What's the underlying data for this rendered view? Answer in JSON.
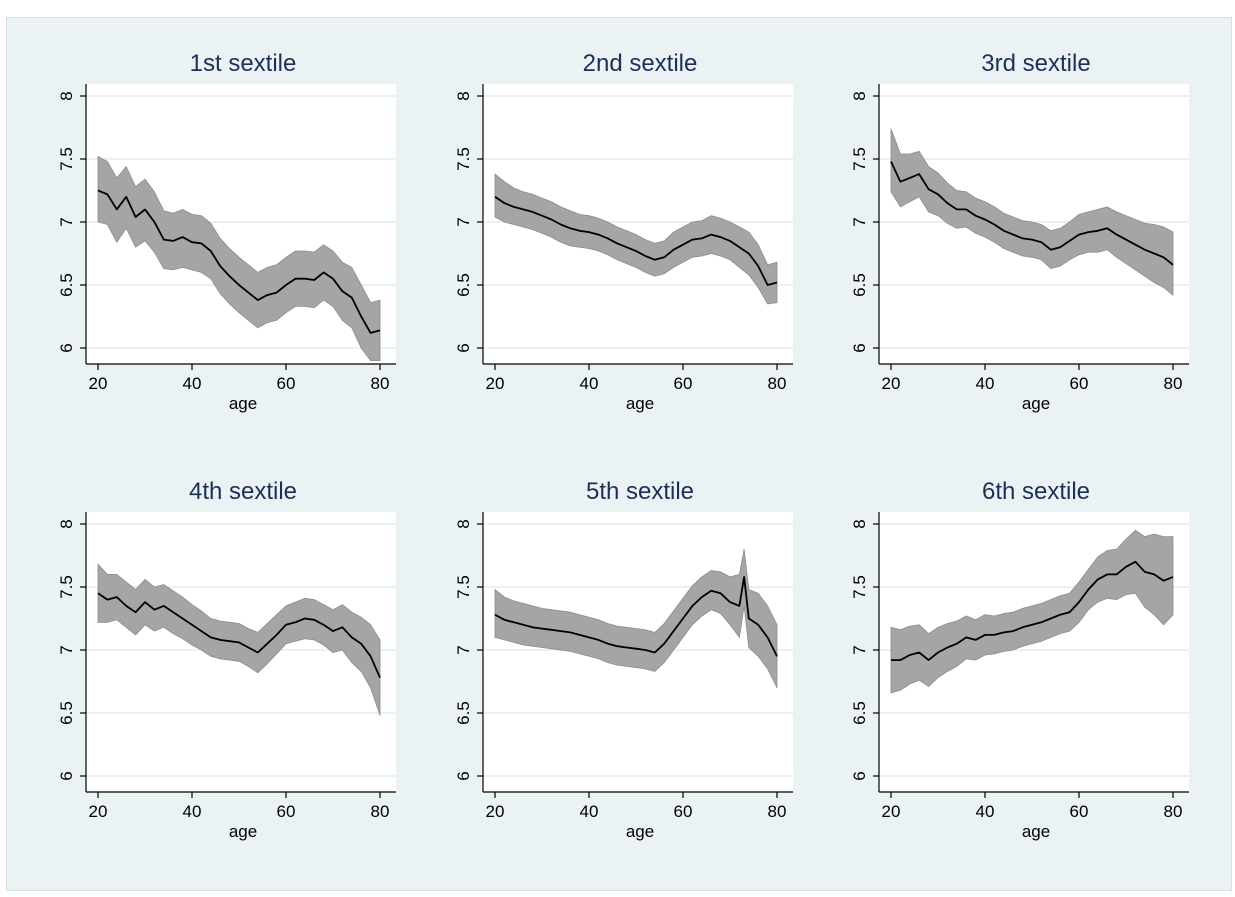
{
  "chart_data": [
    {
      "type": "line",
      "title": "1st sextile",
      "xlabel": "age",
      "ylabel": "",
      "xlim": [
        20,
        80
      ],
      "ylim": [
        6,
        8
      ],
      "xticks": [
        20,
        40,
        60,
        80
      ],
      "yticks": [
        6,
        6.5,
        7,
        7.5,
        8
      ],
      "grid": true,
      "legend": "none",
      "series": [
        {
          "x": [
            20,
            22,
            24,
            26,
            28,
            30,
            32,
            34,
            36,
            38,
            40,
            42,
            44,
            46,
            48,
            50,
            52,
            54,
            56,
            58,
            60,
            62,
            64,
            66,
            68,
            70,
            72,
            74,
            76,
            78,
            80
          ],
          "y": [
            7.25,
            7.22,
            7.1,
            7.2,
            7.04,
            7.1,
            7.0,
            6.86,
            6.85,
            6.88,
            6.84,
            6.83,
            6.77,
            6.65,
            6.57,
            6.5,
            6.44,
            6.38,
            6.42,
            6.44,
            6.5,
            6.55,
            6.55,
            6.54,
            6.6,
            6.55,
            6.45,
            6.4,
            6.25,
            6.12,
            6.14
          ],
          "lower": [
            7.0,
            6.98,
            6.84,
            6.95,
            6.8,
            6.85,
            6.76,
            6.63,
            6.62,
            6.64,
            6.62,
            6.6,
            6.55,
            6.43,
            6.35,
            6.28,
            6.22,
            6.16,
            6.2,
            6.22,
            6.28,
            6.33,
            6.33,
            6.32,
            6.38,
            6.33,
            6.22,
            6.16,
            6.0,
            5.9,
            5.9
          ],
          "upper": [
            7.52,
            7.48,
            7.35,
            7.44,
            7.28,
            7.34,
            7.24,
            7.09,
            7.07,
            7.1,
            7.06,
            7.05,
            6.99,
            6.87,
            6.79,
            6.72,
            6.66,
            6.6,
            6.64,
            6.66,
            6.72,
            6.77,
            6.77,
            6.76,
            6.82,
            6.77,
            6.68,
            6.64,
            6.5,
            6.36,
            6.38
          ]
        }
      ]
    },
    {
      "type": "line",
      "title": "2nd sextile",
      "xlabel": "age",
      "ylabel": "",
      "xlim": [
        20,
        80
      ],
      "ylim": [
        6,
        8
      ],
      "xticks": [
        20,
        40,
        60,
        80
      ],
      "yticks": [
        6,
        6.5,
        7,
        7.5,
        8
      ],
      "grid": true,
      "legend": "none",
      "series": [
        {
          "x": [
            20,
            22,
            24,
            26,
            28,
            30,
            32,
            34,
            36,
            38,
            40,
            42,
            44,
            46,
            48,
            50,
            52,
            54,
            56,
            58,
            60,
            62,
            64,
            66,
            68,
            70,
            72,
            74,
            76,
            78,
            80
          ],
          "y": [
            7.2,
            7.15,
            7.12,
            7.1,
            7.08,
            7.05,
            7.02,
            6.98,
            6.95,
            6.93,
            6.92,
            6.9,
            6.87,
            6.83,
            6.8,
            6.77,
            6.73,
            6.7,
            6.72,
            6.78,
            6.82,
            6.86,
            6.87,
            6.9,
            6.88,
            6.85,
            6.8,
            6.75,
            6.65,
            6.5,
            6.52
          ],
          "lower": [
            7.04,
            7.0,
            6.98,
            6.96,
            6.94,
            6.91,
            6.88,
            6.84,
            6.81,
            6.8,
            6.79,
            6.77,
            6.74,
            6.7,
            6.67,
            6.64,
            6.6,
            6.57,
            6.59,
            6.64,
            6.68,
            6.72,
            6.73,
            6.75,
            6.73,
            6.7,
            6.64,
            6.58,
            6.48,
            6.35,
            6.36
          ],
          "upper": [
            7.38,
            7.32,
            7.27,
            7.24,
            7.22,
            7.19,
            7.16,
            7.12,
            7.09,
            7.06,
            7.05,
            7.03,
            7.0,
            6.96,
            6.93,
            6.9,
            6.86,
            6.83,
            6.85,
            6.92,
            6.96,
            7.0,
            7.01,
            7.05,
            7.03,
            7.0,
            6.96,
            6.92,
            6.82,
            6.66,
            6.68
          ]
        }
      ]
    },
    {
      "type": "line",
      "title": "3rd sextile",
      "xlabel": "age",
      "ylabel": "",
      "xlim": [
        20,
        80
      ],
      "ylim": [
        6,
        8
      ],
      "xticks": [
        20,
        40,
        60,
        80
      ],
      "yticks": [
        6,
        6.5,
        7,
        7.5,
        8
      ],
      "grid": true,
      "legend": "none",
      "series": [
        {
          "x": [
            20,
            22,
            24,
            26,
            28,
            30,
            32,
            34,
            36,
            38,
            40,
            42,
            44,
            46,
            48,
            50,
            52,
            54,
            56,
            58,
            60,
            62,
            64,
            66,
            68,
            70,
            72,
            74,
            76,
            78,
            80
          ],
          "y": [
            7.48,
            7.32,
            7.35,
            7.38,
            7.26,
            7.22,
            7.15,
            7.1,
            7.1,
            7.05,
            7.02,
            6.98,
            6.93,
            6.9,
            6.87,
            6.86,
            6.84,
            6.78,
            6.8,
            6.85,
            6.9,
            6.92,
            6.93,
            6.95,
            6.9,
            6.86,
            6.82,
            6.78,
            6.75,
            6.72,
            6.66
          ],
          "lower": [
            7.24,
            7.12,
            7.16,
            7.2,
            7.08,
            7.05,
            6.99,
            6.95,
            6.96,
            6.91,
            6.88,
            6.84,
            6.79,
            6.76,
            6.73,
            6.72,
            6.7,
            6.63,
            6.65,
            6.7,
            6.74,
            6.76,
            6.76,
            6.78,
            6.72,
            6.67,
            6.62,
            6.57,
            6.52,
            6.48,
            6.42
          ],
          "upper": [
            7.74,
            7.54,
            7.54,
            7.56,
            7.44,
            7.39,
            7.31,
            7.25,
            7.24,
            7.19,
            7.16,
            7.12,
            7.07,
            7.04,
            7.01,
            7.0,
            6.98,
            6.93,
            6.95,
            7.0,
            7.06,
            7.08,
            7.1,
            7.12,
            7.08,
            7.05,
            7.02,
            6.99,
            6.98,
            6.96,
            6.92
          ]
        }
      ]
    },
    {
      "type": "line",
      "title": "4th sextile",
      "xlabel": "age",
      "ylabel": "",
      "xlim": [
        20,
        80
      ],
      "ylim": [
        6,
        8
      ],
      "xticks": [
        20,
        40,
        60,
        80
      ],
      "yticks": [
        6,
        6.5,
        7,
        7.5,
        8
      ],
      "grid": true,
      "legend": "none",
      "series": [
        {
          "x": [
            20,
            22,
            24,
            26,
            28,
            30,
            32,
            34,
            36,
            38,
            40,
            42,
            44,
            46,
            48,
            50,
            52,
            54,
            56,
            58,
            60,
            62,
            64,
            66,
            68,
            70,
            72,
            74,
            76,
            78,
            80
          ],
          "y": [
            7.45,
            7.4,
            7.42,
            7.35,
            7.3,
            7.38,
            7.32,
            7.35,
            7.3,
            7.25,
            7.2,
            7.15,
            7.1,
            7.08,
            7.07,
            7.06,
            7.02,
            6.98,
            7.05,
            7.12,
            7.2,
            7.22,
            7.25,
            7.24,
            7.2,
            7.15,
            7.18,
            7.1,
            7.05,
            6.95,
            6.78
          ],
          "lower": [
            7.22,
            7.22,
            7.24,
            7.18,
            7.12,
            7.2,
            7.15,
            7.18,
            7.13,
            7.09,
            7.04,
            7.0,
            6.95,
            6.93,
            6.92,
            6.91,
            6.87,
            6.82,
            6.89,
            6.97,
            7.05,
            7.07,
            7.09,
            7.08,
            7.04,
            6.98,
            7.0,
            6.9,
            6.83,
            6.7,
            6.48
          ],
          "upper": [
            7.68,
            7.6,
            7.6,
            7.54,
            7.48,
            7.56,
            7.5,
            7.52,
            7.47,
            7.42,
            7.36,
            7.31,
            7.25,
            7.23,
            7.22,
            7.21,
            7.17,
            7.14,
            7.21,
            7.28,
            7.35,
            7.38,
            7.41,
            7.4,
            7.36,
            7.32,
            7.36,
            7.3,
            7.26,
            7.2,
            7.08
          ]
        }
      ]
    },
    {
      "type": "line",
      "title": "5th sextile",
      "xlabel": "age",
      "ylabel": "",
      "xlim": [
        20,
        80
      ],
      "ylim": [
        6,
        8
      ],
      "xticks": [
        20,
        40,
        60,
        80
      ],
      "yticks": [
        6,
        6.5,
        7,
        7.5,
        8
      ],
      "grid": true,
      "legend": "none",
      "series": [
        {
          "x": [
            20,
            22,
            24,
            26,
            28,
            30,
            32,
            34,
            36,
            38,
            40,
            42,
            44,
            46,
            48,
            50,
            52,
            54,
            56,
            58,
            60,
            62,
            64,
            66,
            68,
            70,
            72,
            73,
            74,
            76,
            78,
            80
          ],
          "y": [
            7.28,
            7.24,
            7.22,
            7.2,
            7.18,
            7.17,
            7.16,
            7.15,
            7.14,
            7.12,
            7.1,
            7.08,
            7.05,
            7.03,
            7.02,
            7.01,
            7.0,
            6.98,
            7.05,
            7.15,
            7.25,
            7.35,
            7.42,
            7.47,
            7.45,
            7.38,
            7.35,
            7.58,
            7.25,
            7.2,
            7.1,
            6.95
          ],
          "lower": [
            7.1,
            7.08,
            7.06,
            7.04,
            7.03,
            7.02,
            7.01,
            7.0,
            6.99,
            6.97,
            6.95,
            6.93,
            6.9,
            6.88,
            6.87,
            6.86,
            6.85,
            6.83,
            6.9,
            7.0,
            7.1,
            7.2,
            7.27,
            7.32,
            7.29,
            7.2,
            7.1,
            7.35,
            7.02,
            6.95,
            6.85,
            6.7
          ],
          "upper": [
            7.48,
            7.42,
            7.39,
            7.37,
            7.35,
            7.33,
            7.32,
            7.31,
            7.3,
            7.28,
            7.26,
            7.24,
            7.21,
            7.19,
            7.18,
            7.17,
            7.16,
            7.14,
            7.21,
            7.31,
            7.41,
            7.51,
            7.58,
            7.63,
            7.62,
            7.58,
            7.6,
            7.8,
            7.48,
            7.45,
            7.35,
            7.2
          ]
        }
      ]
    },
    {
      "type": "line",
      "title": "6th sextile",
      "xlabel": "age",
      "ylabel": "",
      "xlim": [
        20,
        80
      ],
      "ylim": [
        6,
        8
      ],
      "xticks": [
        20,
        40,
        60,
        80
      ],
      "yticks": [
        6,
        6.5,
        7,
        7.5,
        8
      ],
      "grid": true,
      "legend": "none",
      "series": [
        {
          "x": [
            20,
            22,
            24,
            26,
            28,
            30,
            32,
            34,
            36,
            38,
            40,
            42,
            44,
            46,
            48,
            50,
            52,
            54,
            56,
            58,
            60,
            62,
            64,
            66,
            68,
            70,
            72,
            74,
            76,
            78,
            80
          ],
          "y": [
            6.92,
            6.92,
            6.96,
            6.98,
            6.92,
            6.98,
            7.02,
            7.05,
            7.1,
            7.08,
            7.12,
            7.12,
            7.14,
            7.15,
            7.18,
            7.2,
            7.22,
            7.25,
            7.28,
            7.3,
            7.38,
            7.48,
            7.56,
            7.6,
            7.6,
            7.66,
            7.7,
            7.62,
            7.6,
            7.55,
            7.58
          ],
          "lower": [
            6.66,
            6.68,
            6.73,
            6.76,
            6.71,
            6.78,
            6.83,
            6.87,
            6.93,
            6.92,
            6.96,
            6.97,
            6.99,
            7.0,
            7.03,
            7.05,
            7.07,
            7.1,
            7.13,
            7.15,
            7.22,
            7.32,
            7.38,
            7.41,
            7.4,
            7.44,
            7.45,
            7.34,
            7.28,
            7.2,
            7.28
          ],
          "upper": [
            7.18,
            7.16,
            7.19,
            7.2,
            7.13,
            7.18,
            7.21,
            7.23,
            7.27,
            7.24,
            7.28,
            7.27,
            7.29,
            7.3,
            7.33,
            7.35,
            7.37,
            7.4,
            7.43,
            7.45,
            7.54,
            7.64,
            7.74,
            7.79,
            7.8,
            7.88,
            7.95,
            7.9,
            7.92,
            7.9,
            7.9
          ]
        }
      ]
    }
  ]
}
